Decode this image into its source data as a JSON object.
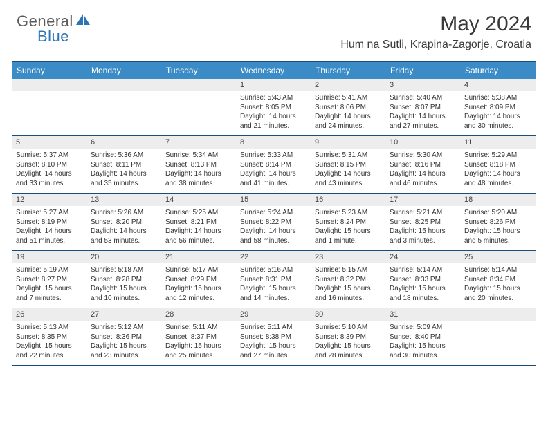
{
  "logo": {
    "text1": "General",
    "text2": "Blue"
  },
  "title": "May 2024",
  "location": "Hum na Sutli, Krapina-Zagorje, Croatia",
  "colors": {
    "header_bar": "#3b8bc7",
    "header_text": "#ffffff",
    "border": "#1a4e7a",
    "daynum_bg": "#ededed",
    "logo_gray": "#5a5a5a",
    "logo_blue": "#2e74b5"
  },
  "dayHeaders": [
    "Sunday",
    "Monday",
    "Tuesday",
    "Wednesday",
    "Thursday",
    "Friday",
    "Saturday"
  ],
  "weeks": [
    [
      {
        "num": "",
        "sunrise": "",
        "sunset": "",
        "daylight": ""
      },
      {
        "num": "",
        "sunrise": "",
        "sunset": "",
        "daylight": ""
      },
      {
        "num": "",
        "sunrise": "",
        "sunset": "",
        "daylight": ""
      },
      {
        "num": "1",
        "sunrise": "Sunrise: 5:43 AM",
        "sunset": "Sunset: 8:05 PM",
        "daylight": "Daylight: 14 hours and 21 minutes."
      },
      {
        "num": "2",
        "sunrise": "Sunrise: 5:41 AM",
        "sunset": "Sunset: 8:06 PM",
        "daylight": "Daylight: 14 hours and 24 minutes."
      },
      {
        "num": "3",
        "sunrise": "Sunrise: 5:40 AM",
        "sunset": "Sunset: 8:07 PM",
        "daylight": "Daylight: 14 hours and 27 minutes."
      },
      {
        "num": "4",
        "sunrise": "Sunrise: 5:38 AM",
        "sunset": "Sunset: 8:09 PM",
        "daylight": "Daylight: 14 hours and 30 minutes."
      }
    ],
    [
      {
        "num": "5",
        "sunrise": "Sunrise: 5:37 AM",
        "sunset": "Sunset: 8:10 PM",
        "daylight": "Daylight: 14 hours and 33 minutes."
      },
      {
        "num": "6",
        "sunrise": "Sunrise: 5:36 AM",
        "sunset": "Sunset: 8:11 PM",
        "daylight": "Daylight: 14 hours and 35 minutes."
      },
      {
        "num": "7",
        "sunrise": "Sunrise: 5:34 AM",
        "sunset": "Sunset: 8:13 PM",
        "daylight": "Daylight: 14 hours and 38 minutes."
      },
      {
        "num": "8",
        "sunrise": "Sunrise: 5:33 AM",
        "sunset": "Sunset: 8:14 PM",
        "daylight": "Daylight: 14 hours and 41 minutes."
      },
      {
        "num": "9",
        "sunrise": "Sunrise: 5:31 AM",
        "sunset": "Sunset: 8:15 PM",
        "daylight": "Daylight: 14 hours and 43 minutes."
      },
      {
        "num": "10",
        "sunrise": "Sunrise: 5:30 AM",
        "sunset": "Sunset: 8:16 PM",
        "daylight": "Daylight: 14 hours and 46 minutes."
      },
      {
        "num": "11",
        "sunrise": "Sunrise: 5:29 AM",
        "sunset": "Sunset: 8:18 PM",
        "daylight": "Daylight: 14 hours and 48 minutes."
      }
    ],
    [
      {
        "num": "12",
        "sunrise": "Sunrise: 5:27 AM",
        "sunset": "Sunset: 8:19 PM",
        "daylight": "Daylight: 14 hours and 51 minutes."
      },
      {
        "num": "13",
        "sunrise": "Sunrise: 5:26 AM",
        "sunset": "Sunset: 8:20 PM",
        "daylight": "Daylight: 14 hours and 53 minutes."
      },
      {
        "num": "14",
        "sunrise": "Sunrise: 5:25 AM",
        "sunset": "Sunset: 8:21 PM",
        "daylight": "Daylight: 14 hours and 56 minutes."
      },
      {
        "num": "15",
        "sunrise": "Sunrise: 5:24 AM",
        "sunset": "Sunset: 8:22 PM",
        "daylight": "Daylight: 14 hours and 58 minutes."
      },
      {
        "num": "16",
        "sunrise": "Sunrise: 5:23 AM",
        "sunset": "Sunset: 8:24 PM",
        "daylight": "Daylight: 15 hours and 1 minute."
      },
      {
        "num": "17",
        "sunrise": "Sunrise: 5:21 AM",
        "sunset": "Sunset: 8:25 PM",
        "daylight": "Daylight: 15 hours and 3 minutes."
      },
      {
        "num": "18",
        "sunrise": "Sunrise: 5:20 AM",
        "sunset": "Sunset: 8:26 PM",
        "daylight": "Daylight: 15 hours and 5 minutes."
      }
    ],
    [
      {
        "num": "19",
        "sunrise": "Sunrise: 5:19 AM",
        "sunset": "Sunset: 8:27 PM",
        "daylight": "Daylight: 15 hours and 7 minutes."
      },
      {
        "num": "20",
        "sunrise": "Sunrise: 5:18 AM",
        "sunset": "Sunset: 8:28 PM",
        "daylight": "Daylight: 15 hours and 10 minutes."
      },
      {
        "num": "21",
        "sunrise": "Sunrise: 5:17 AM",
        "sunset": "Sunset: 8:29 PM",
        "daylight": "Daylight: 15 hours and 12 minutes."
      },
      {
        "num": "22",
        "sunrise": "Sunrise: 5:16 AM",
        "sunset": "Sunset: 8:31 PM",
        "daylight": "Daylight: 15 hours and 14 minutes."
      },
      {
        "num": "23",
        "sunrise": "Sunrise: 5:15 AM",
        "sunset": "Sunset: 8:32 PM",
        "daylight": "Daylight: 15 hours and 16 minutes."
      },
      {
        "num": "24",
        "sunrise": "Sunrise: 5:14 AM",
        "sunset": "Sunset: 8:33 PM",
        "daylight": "Daylight: 15 hours and 18 minutes."
      },
      {
        "num": "25",
        "sunrise": "Sunrise: 5:14 AM",
        "sunset": "Sunset: 8:34 PM",
        "daylight": "Daylight: 15 hours and 20 minutes."
      }
    ],
    [
      {
        "num": "26",
        "sunrise": "Sunrise: 5:13 AM",
        "sunset": "Sunset: 8:35 PM",
        "daylight": "Daylight: 15 hours and 22 minutes."
      },
      {
        "num": "27",
        "sunrise": "Sunrise: 5:12 AM",
        "sunset": "Sunset: 8:36 PM",
        "daylight": "Daylight: 15 hours and 23 minutes."
      },
      {
        "num": "28",
        "sunrise": "Sunrise: 5:11 AM",
        "sunset": "Sunset: 8:37 PM",
        "daylight": "Daylight: 15 hours and 25 minutes."
      },
      {
        "num": "29",
        "sunrise": "Sunrise: 5:11 AM",
        "sunset": "Sunset: 8:38 PM",
        "daylight": "Daylight: 15 hours and 27 minutes."
      },
      {
        "num": "30",
        "sunrise": "Sunrise: 5:10 AM",
        "sunset": "Sunset: 8:39 PM",
        "daylight": "Daylight: 15 hours and 28 minutes."
      },
      {
        "num": "31",
        "sunrise": "Sunrise: 5:09 AM",
        "sunset": "Sunset: 8:40 PM",
        "daylight": "Daylight: 15 hours and 30 minutes."
      },
      {
        "num": "",
        "sunrise": "",
        "sunset": "",
        "daylight": ""
      }
    ]
  ]
}
